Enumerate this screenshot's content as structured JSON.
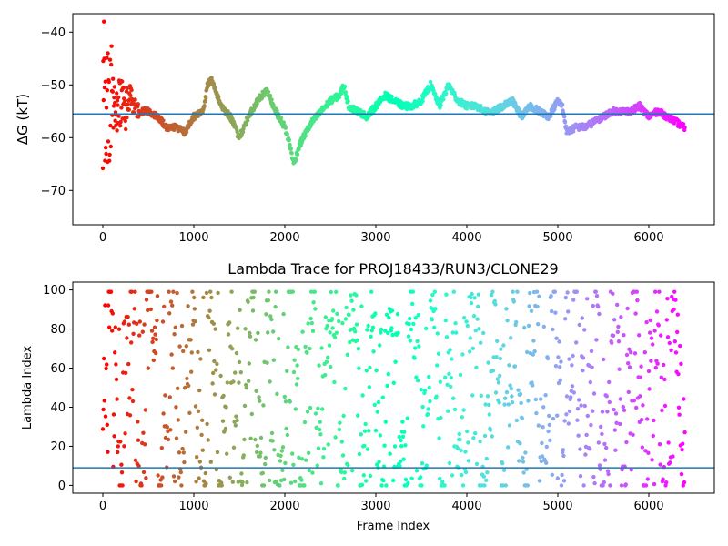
{
  "chart_data": [
    {
      "type": "scatter",
      "title": "",
      "xlabel": "",
      "ylabel": "ΔG (kT)",
      "xlim": [
        -330,
        6720
      ],
      "ylim": [
        -76.5,
        -36.5
      ],
      "xticks": [
        0,
        1000,
        2000,
        3000,
        4000,
        5000,
        6000
      ],
      "yticks": [
        -40,
        -50,
        -60,
        -70
      ],
      "ytick_labels": [
        "−40",
        "−50",
        "−60",
        "−70"
      ],
      "xtick_labels": [
        "0",
        "1000",
        "2000",
        "3000",
        "4000",
        "5000",
        "6000"
      ],
      "hline": -55.5,
      "hline_color": "#1f77b4",
      "colormap": "rainbow (color by frame index, red at start to violet at end)",
      "grid": false,
      "n_points": 6400,
      "series": [
        {
          "x": [
            0,
            50,
            100,
            150,
            200,
            250,
            300,
            350,
            400,
            500,
            600,
            700,
            800,
            900,
            1000,
            1100,
            1150,
            1200,
            1300,
            1400,
            1500,
            1600,
            1700,
            1800,
            1900,
            2000,
            2050,
            2100,
            2150,
            2200,
            2300,
            2400,
            2500,
            2600,
            2650,
            2700,
            2800,
            2900,
            3000,
            3100,
            3200,
            3300,
            3400,
            3500,
            3600,
            3700,
            3800,
            3900,
            4000,
            4100,
            4200,
            4300,
            4400,
            4500,
            4600,
            4700,
            4800,
            4900,
            5000,
            5050,
            5100,
            5200,
            5300,
            5400,
            5500,
            5600,
            5700,
            5800,
            5900,
            6000,
            6100,
            6200,
            6300,
            6380
          ],
          "y": [
            -50,
            -55,
            -52,
            -56,
            -53,
            -55,
            -52,
            -54,
            -55,
            -55,
            -56,
            -58,
            -58,
            -59,
            -56,
            -55,
            -50,
            -49,
            -54,
            -56,
            -60,
            -56,
            -53,
            -51,
            -55,
            -58,
            -61,
            -65,
            -62,
            -60,
            -57,
            -55,
            -53,
            -52,
            -50,
            -54,
            -55,
            -56,
            -54,
            -52,
            -53,
            -54,
            -54,
            -53,
            -50,
            -54,
            -50,
            -53,
            -54,
            -54,
            -55,
            -55,
            -54,
            -53,
            -56,
            -54,
            -55,
            -56,
            -53,
            -54,
            -59,
            -58,
            -58,
            -57,
            -56,
            -55,
            -55,
            -55,
            -54,
            -56,
            -55,
            -56,
            -57,
            -58
          ]
        }
      ]
    },
    {
      "type": "scatter",
      "title": "Lambda Trace for PROJ18433/RUN3/CLONE29",
      "xlabel": "Frame Index",
      "ylabel": "Lambda Index",
      "xlim": [
        -330,
        6720
      ],
      "ylim": [
        -4,
        104
      ],
      "xticks": [
        0,
        1000,
        2000,
        3000,
        4000,
        5000,
        6000
      ],
      "xtick_labels": [
        "0",
        "1000",
        "2000",
        "3000",
        "4000",
        "5000",
        "6000"
      ],
      "yticks": [
        0,
        20,
        40,
        60,
        80,
        100
      ],
      "ytick_labels": [
        "0",
        "20",
        "40",
        "60",
        "80",
        "100"
      ],
      "hline": 9,
      "hline_color": "#1f77b4",
      "colormap": "rainbow (color by frame index, red at start to violet at end)",
      "grid": false,
      "n_points": 6400,
      "value_range": [
        0,
        99
      ]
    }
  ]
}
